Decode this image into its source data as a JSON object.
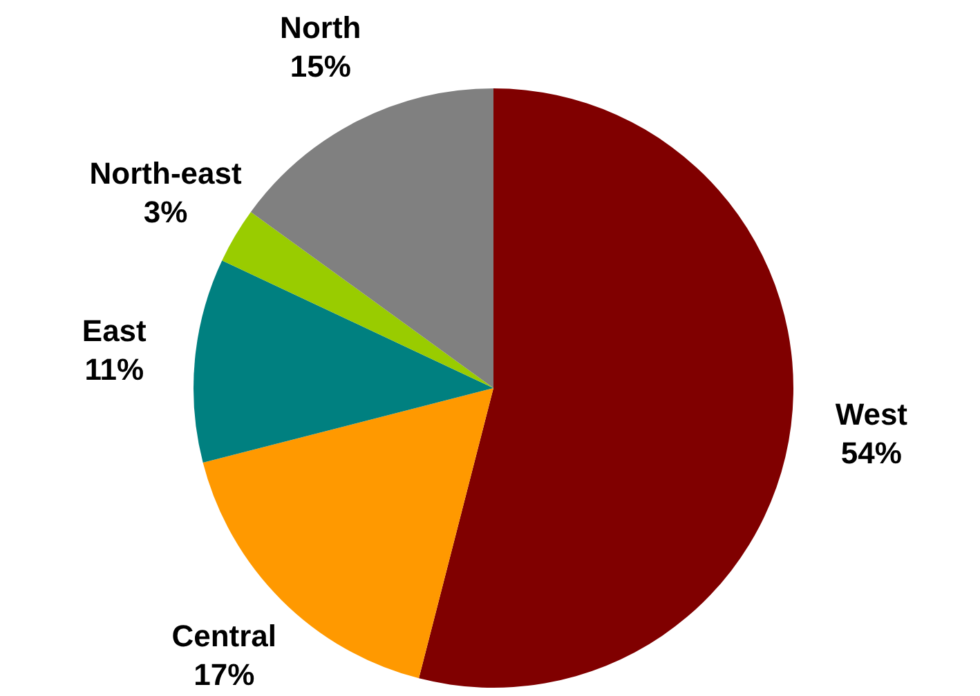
{
  "chart_data": {
    "type": "pie",
    "categories": [
      "West",
      "Central",
      "East",
      "North-east",
      "North"
    ],
    "values": [
      54,
      17,
      11,
      3,
      15
    ],
    "value_labels": [
      "54%",
      "17%",
      "11%",
      "3%",
      "15%"
    ],
    "colors": [
      "#800000",
      "#ff9900",
      "#008080",
      "#99cc00",
      "#808080"
    ],
    "legend": false
  }
}
